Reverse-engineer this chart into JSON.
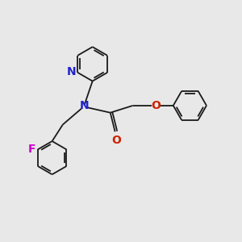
{
  "bg_color": "#e8e8e8",
  "bond_color": "#1a1a1a",
  "bond_width": 1.3,
  "N_color": "#2222cc",
  "O_color": "#cc2200",
  "F_color": "#cc00cc",
  "font_size": 10,
  "fig_size": [
    3.0,
    3.0
  ],
  "dpi": 100,
  "xlim": [
    0,
    10
  ],
  "ylim": [
    0,
    10
  ]
}
